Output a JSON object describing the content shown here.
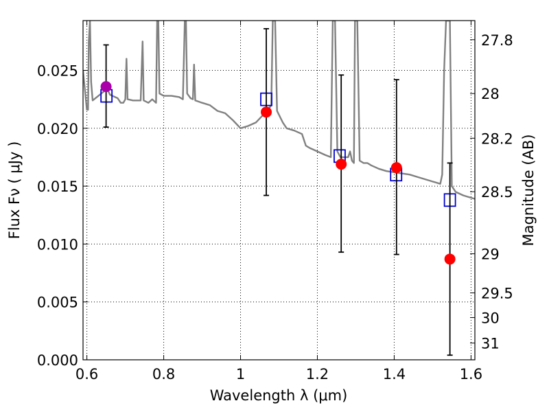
{
  "chart_data": {
    "type": "scatter",
    "xlabel": "Wavelength  λ (μm)",
    "ylabel": "Flux  Fν  ( μJy )",
    "ylabel_right": "Magnitude (AB)",
    "xlim": [
      0.59,
      1.61
    ],
    "ylim": [
      0.0,
      0.0293
    ],
    "grid": true,
    "x_ticks": [
      0.6,
      0.8,
      1.0,
      1.2,
      1.4,
      1.6
    ],
    "x_tick_labels": [
      "0.6",
      "0.8",
      "1",
      "1.2",
      "1.4",
      "1.6"
    ],
    "y_ticks": [
      0.0,
      0.005,
      0.01,
      0.015,
      0.02,
      0.025
    ],
    "y_tick_labels": [
      "0.000",
      "0.005",
      "0.010",
      "0.015",
      "0.020",
      "0.025"
    ],
    "right_ticks": [
      {
        "label": "27.8",
        "flux": 0.02765
      },
      {
        "label": "28",
        "flux": 0.023
      },
      {
        "label": "28.2",
        "flux": 0.01914
      },
      {
        "label": "28.5",
        "flux": 0.01452
      },
      {
        "label": "29",
        "flux": 0.00916
      },
      {
        "label": "29.5",
        "flux": 0.00578
      },
      {
        "label": "30",
        "flux": 0.00365
      },
      {
        "label": "31",
        "flux": 0.00145
      }
    ],
    "colors": {
      "model": "#808080",
      "model_photometry": "#0000cc",
      "observed": "#ff0000",
      "observed_first": "#aa00aa",
      "errorbar": "#000000"
    },
    "series": [
      {
        "kind": "model_spectrum",
        "points": [
          [
            0.59,
            0.025
          ],
          [
            0.6,
            0.0216
          ],
          [
            0.603,
            0.0216
          ],
          [
            0.605,
            0.0275
          ],
          [
            0.608,
            0.0293
          ],
          [
            0.611,
            0.024
          ],
          [
            0.615,
            0.0224
          ],
          [
            0.63,
            0.0228
          ],
          [
            0.645,
            0.0232
          ],
          [
            0.652,
            0.0236
          ],
          [
            0.656,
            0.0232
          ],
          [
            0.66,
            0.0229
          ],
          [
            0.68,
            0.0226
          ],
          [
            0.688,
            0.0222
          ],
          [
            0.695,
            0.0222
          ],
          [
            0.7,
            0.0225
          ],
          [
            0.703,
            0.026
          ],
          [
            0.706,
            0.0225
          ],
          [
            0.72,
            0.0224
          ],
          [
            0.74,
            0.0224
          ],
          [
            0.745,
            0.0275
          ],
          [
            0.748,
            0.0224
          ],
          [
            0.76,
            0.0222
          ],
          [
            0.77,
            0.0225
          ],
          [
            0.78,
            0.0222
          ],
          [
            0.783,
            0.0293
          ],
          [
            0.786,
            0.0293
          ],
          [
            0.789,
            0.023
          ],
          [
            0.8,
            0.0228
          ],
          [
            0.82,
            0.0228
          ],
          [
            0.84,
            0.0227
          ],
          [
            0.85,
            0.0225
          ],
          [
            0.855,
            0.0293
          ],
          [
            0.858,
            0.0293
          ],
          [
            0.861,
            0.023
          ],
          [
            0.87,
            0.0226
          ],
          [
            0.876,
            0.0225
          ],
          [
            0.879,
            0.0255
          ],
          [
            0.882,
            0.0224
          ],
          [
            0.9,
            0.0222
          ],
          [
            0.92,
            0.022
          ],
          [
            0.94,
            0.0215
          ],
          [
            0.96,
            0.0213
          ],
          [
            0.98,
            0.0207
          ],
          [
            1.0,
            0.02
          ],
          [
            1.02,
            0.0202
          ],
          [
            1.04,
            0.0205
          ],
          [
            1.06,
            0.0212
          ],
          [
            1.07,
            0.0215
          ],
          [
            1.08,
            0.022
          ],
          [
            1.084,
            0.0293
          ],
          [
            1.09,
            0.0293
          ],
          [
            1.095,
            0.0215
          ],
          [
            1.11,
            0.0205
          ],
          [
            1.12,
            0.02
          ],
          [
            1.14,
            0.0198
          ],
          [
            1.16,
            0.0195
          ],
          [
            1.17,
            0.0185
          ],
          [
            1.18,
            0.0183
          ],
          [
            1.2,
            0.018
          ],
          [
            1.22,
            0.0177
          ],
          [
            1.235,
            0.0175
          ],
          [
            1.24,
            0.0293
          ],
          [
            1.246,
            0.0293
          ],
          [
            1.252,
            0.018
          ],
          [
            1.26,
            0.0175
          ],
          [
            1.28,
            0.0175
          ],
          [
            1.285,
            0.018
          ],
          [
            1.29,
            0.0172
          ],
          [
            1.295,
            0.017
          ],
          [
            1.298,
            0.0293
          ],
          [
            1.304,
            0.0293
          ],
          [
            1.31,
            0.0172
          ],
          [
            1.32,
            0.017
          ],
          [
            1.33,
            0.017
          ],
          [
            1.34,
            0.0168
          ],
          [
            1.36,
            0.0165
          ],
          [
            1.38,
            0.0163
          ],
          [
            1.4,
            0.0162
          ],
          [
            1.42,
            0.0161
          ],
          [
            1.44,
            0.016
          ],
          [
            1.46,
            0.0158
          ],
          [
            1.48,
            0.0156
          ],
          [
            1.5,
            0.0154
          ],
          [
            1.52,
            0.0152
          ],
          [
            1.525,
            0.016
          ],
          [
            1.53,
            0.025
          ],
          [
            1.535,
            0.0293
          ],
          [
            1.545,
            0.0293
          ],
          [
            1.55,
            0.015
          ],
          [
            1.56,
            0.0145
          ],
          [
            1.58,
            0.0142
          ],
          [
            1.6,
            0.014
          ],
          [
            1.61,
            0.0139
          ]
        ]
      },
      {
        "kind": "model_photometry",
        "points": [
          {
            "x": 0.651,
            "y": 0.0228
          },
          {
            "x": 1.067,
            "y": 0.0225
          },
          {
            "x": 1.258,
            "y": 0.0176
          },
          {
            "x": 1.405,
            "y": 0.016
          },
          {
            "x": 1.545,
            "y": 0.0138
          }
        ]
      },
      {
        "kind": "observed",
        "points": [
          {
            "x": 0.65,
            "y": 0.0236,
            "err_low": 0.0201,
            "err_high": 0.0272
          },
          {
            "x": 1.067,
            "y": 0.0214,
            "err_low": 0.0142,
            "err_high": 0.0286
          },
          {
            "x": 1.262,
            "y": 0.0169,
            "err_low": 0.0093,
            "err_high": 0.0246
          },
          {
            "x": 1.406,
            "y": 0.0166,
            "err_low": 0.0091,
            "err_high": 0.0242
          },
          {
            "x": 1.545,
            "y": 0.0087,
            "err_low": 0.0004,
            "err_high": 0.017
          }
        ]
      }
    ]
  }
}
